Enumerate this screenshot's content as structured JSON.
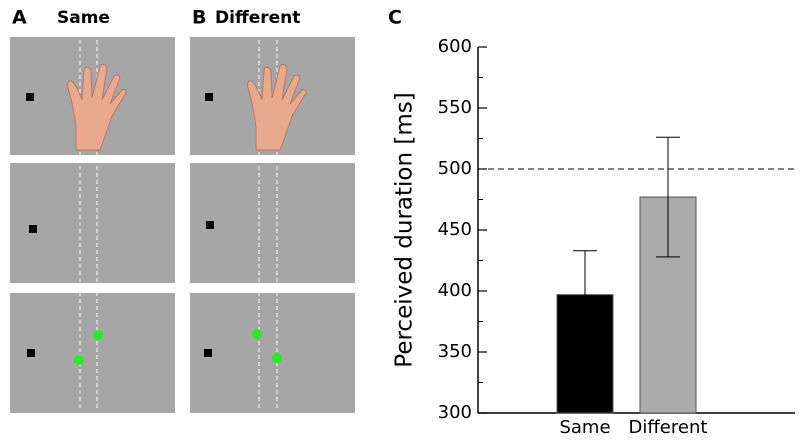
{
  "panels": [
    {
      "label": "A",
      "title": "Same"
    },
    {
      "label": "B",
      "title": "Different"
    }
  ],
  "chart_data": {
    "type": "bar",
    "panel_label": "C",
    "ylabel": "Perceived duration [ms]",
    "categories": [
      "Same",
      "Different"
    ],
    "values": [
      397,
      477
    ],
    "errors": [
      36,
      49
    ],
    "colors": [
      "#000000",
      "#aaaaaa"
    ],
    "ylim": [
      300,
      600
    ],
    "yticks": [
      300,
      350,
      400,
      450,
      500,
      550,
      600
    ],
    "yminorticks": [
      325,
      375,
      425,
      475,
      525,
      575
    ],
    "reference_line": 500
  }
}
